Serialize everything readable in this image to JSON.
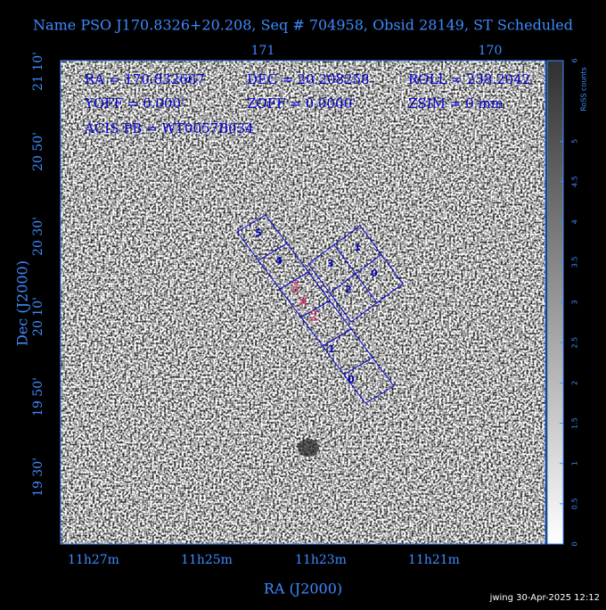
{
  "header": {
    "title": "Name PSO J170.8326+20.208, Seq # 704958, Obsid 28149, ST Scheduled"
  },
  "axes": {
    "top_ticks": [
      "171",
      "170"
    ],
    "left_ticks": [
      "21 10'",
      "20 50'",
      "20 30'",
      "20 10'",
      "19 50'",
      "19 30'"
    ],
    "bottom_ticks": [
      "11h27m",
      "11h25m",
      "11h23m",
      "11h21m"
    ],
    "x_label": "RA (J2000)",
    "y_label": "Dec (J2000)"
  },
  "info": [
    [
      "RA = 170.832667",
      "DEC = 20.208258",
      "ROLL = 238.2042"
    ],
    [
      "YOFF =    0.000'",
      "ZOFF =  0.0000'",
      "ZSIM = 0 mm"
    ],
    [
      "ACIS PB = WT0057B034"
    ]
  ],
  "chips": {
    "s_array": [
      "5",
      "4",
      "1",
      "0"
    ],
    "i_array": [
      "3",
      "1",
      "2",
      "0"
    ],
    "markers": [
      "3",
      "2"
    ]
  },
  "colorbar": {
    "label": "RoSS counts",
    "ticks": [
      0,
      0.5,
      1,
      1.5,
      2,
      2.5,
      3,
      3.5,
      4,
      4.5,
      5,
      6
    ]
  },
  "footer": "jwing 30-Apr-2025 12:12"
}
